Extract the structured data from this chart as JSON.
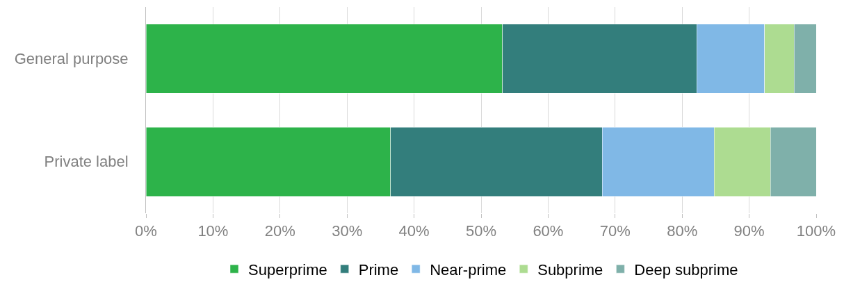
{
  "chart_data": {
    "type": "bar",
    "orientation": "horizontal",
    "stacked": true,
    "categories": [
      "General purpose",
      "Private label"
    ],
    "series": [
      {
        "name": "Superprime",
        "color": "#2db34a",
        "values": [
          53.2,
          36.5
        ]
      },
      {
        "name": "Prime",
        "color": "#337e7c",
        "values": [
          29.0,
          31.6
        ]
      },
      {
        "name": "Near-prime",
        "color": "#80b8e6",
        "values": [
          10.1,
          16.7
        ]
      },
      {
        "name": "Subprime",
        "color": "#addc91",
        "values": [
          4.4,
          8.4
        ]
      },
      {
        "name": "Deep subprime",
        "color": "#7fb0aa",
        "values": [
          3.3,
          6.8
        ]
      }
    ],
    "xlim": [
      0,
      100
    ],
    "xticks": [
      {
        "value": 0,
        "label": "0%"
      },
      {
        "value": 10,
        "label": "10%"
      },
      {
        "value": 20,
        "label": "20%"
      },
      {
        "value": 30,
        "label": "30%"
      },
      {
        "value": 40,
        "label": "40%"
      },
      {
        "value": 50,
        "label": "50%"
      },
      {
        "value": 60,
        "label": "60%"
      },
      {
        "value": 70,
        "label": "70%"
      },
      {
        "value": 80,
        "label": "80%"
      },
      {
        "value": 90,
        "label": "90%"
      },
      {
        "value": 100,
        "label": "100%"
      }
    ],
    "grid": "x",
    "legend": "bottom"
  }
}
